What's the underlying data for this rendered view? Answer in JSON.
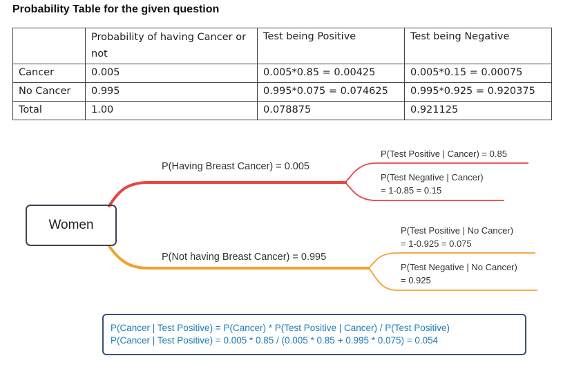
{
  "title": "Probability Table for the given question",
  "table": {
    "headers": [
      "",
      "Probability of having Cancer or not",
      "Test being Positive",
      "Test being Negative"
    ],
    "rows": [
      [
        "Cancer",
        "0.005",
        "0.005*0.85 = 0.00425",
        "0.005*0.15 = 0.00075"
      ],
      [
        "No Cancer",
        "0.995",
        "0.995*0.075 = 0.074625",
        "0.995*0.925 = 0.920375"
      ],
      [
        "Total",
        "1.00",
        "0.078875",
        "0.921125"
      ]
    ]
  },
  "mindmap": {
    "root": "Women",
    "branches": [
      {
        "label": "P(Having Breast Cancer) = 0.005",
        "color": "#e8453c",
        "leaves": [
          {
            "line1": "P(Test Positive | Cancer) = 0.85",
            "line2": ""
          },
          {
            "line1": "P(Test Negative | Cancer)",
            "line2": "= 1-0.85 = 0.15"
          }
        ]
      },
      {
        "label": "P(Not having Breast Cancer) = 0.995",
        "color": "#f5a02a",
        "leaves": [
          {
            "line1": "P(Test Positive | No Cancer)",
            "line2": "= 1-0.925 = 0.075"
          },
          {
            "line1": "P(Test Negative | No Cancer)",
            "line2": "= 0.925"
          }
        ]
      }
    ]
  },
  "formula": {
    "line1": "P(Cancer | Test Positive) = P(Cancer) * P(Test Positive | Cancer) / P(Test Positive)",
    "line2": "P(Cancer | Test Positive) = 0.005 * 0.85 / (0.005 * 0.85 + 0.995 * 0.075) = 0.054"
  }
}
